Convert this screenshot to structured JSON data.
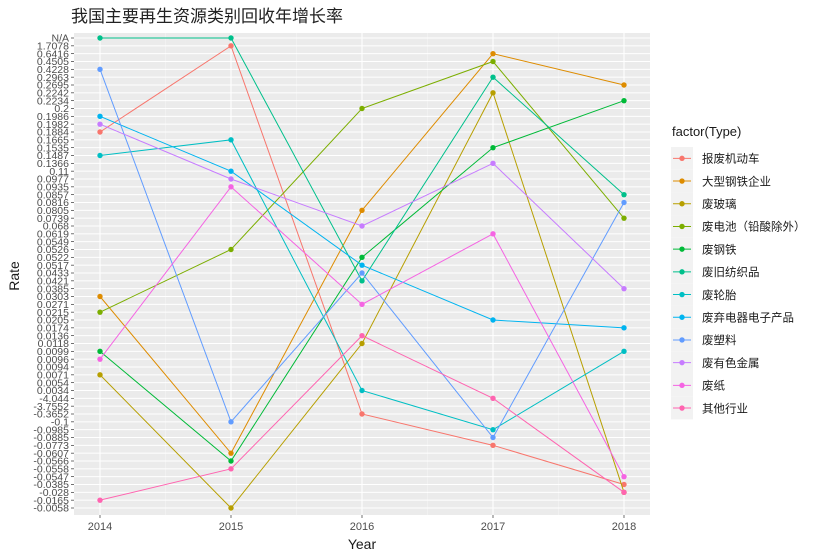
{
  "chart_data": {
    "type": "line",
    "title": "我国主要再生资源类别回收年增长率",
    "xlabel": "Year",
    "ylabel": "Rate",
    "x": [
      "2014",
      "2015",
      "2016",
      "2017",
      "2018"
    ],
    "y_axis_scale": "categorical (tick labels are discrete values; first tick at bottom)",
    "y_ticks": [
      "-0.0058",
      "-0.0165",
      "-0.028",
      "-0.0385",
      "-0.0547",
      "-0.0558",
      "-0.0566",
      "-0.0607",
      "-0.0773",
      "-0.0885",
      "-0.0985",
      "-0.1",
      "-0.3652",
      "-3.7552",
      "-4.044",
      "0.0034",
      "0.0054",
      "0.0071",
      "0.0094",
      "0.0096",
      "0.0099",
      "0.0118",
      "0.0136",
      "0.0174",
      "0.0205",
      "0.0215",
      "0.0271",
      "0.0303",
      "0.0385",
      "0.0421",
      "0.0433",
      "0.0517",
      "0.0522",
      "0.0526",
      "0.0549",
      "0.0619",
      "0.068",
      "0.0739",
      "0.0805",
      "0.0816",
      "0.0857",
      "0.0935",
      "0.0977",
      "0.11",
      "0.1366",
      "0.1487",
      "0.1535",
      "0.1665",
      "0.1884",
      "0.1982",
      "0.1986",
      "0.2",
      "0.2234",
      "0.2242",
      "0.2695",
      "0.2963",
      "0.4228",
      "0.4505",
      "0.6416",
      "1.7078",
      "N/A"
    ],
    "legend_title": "factor(Type)",
    "legend_position": "right",
    "grid": true,
    "series": [
      {
        "name": "报废机动车",
        "color": "#F8766D",
        "values": [
          "0.1884",
          "1.7078",
          "-0.3652",
          "-0.0773",
          "-0.0385"
        ]
      },
      {
        "name": "大型钢铁企业",
        "color": "#DE8C00",
        "values": [
          "0.0303",
          "-0.0607",
          "0.0805",
          "0.6416",
          "0.2695"
        ]
      },
      {
        "name": "废玻璃",
        "color": "#B79F00",
        "values": [
          "0.0071",
          "-0.0058",
          "0.0118",
          "0.2242",
          "-0.028"
        ]
      },
      {
        "name": "废电池（铅酸除外）",
        "color": "#7CAE00",
        "values": [
          "0.0215",
          "0.0526",
          "0.2",
          "0.4505",
          "0.0739"
        ]
      },
      {
        "name": "废钢铁",
        "color": "#00BA38",
        "values": [
          "0.0099",
          "-0.0566",
          "0.0522",
          "0.1535",
          "0.2234"
        ]
      },
      {
        "name": "废旧纺织品",
        "color": "#00C08B",
        "values": [
          "N/A",
          "N/A",
          "0.0421",
          "0.2963",
          "0.0857"
        ]
      },
      {
        "name": "废轮胎",
        "color": "#00BFC4",
        "values": [
          "0.1487",
          "0.1665",
          "0.0034",
          "-0.0985",
          "0.0099"
        ]
      },
      {
        "name": "废弃电器电子产品",
        "color": "#00B4F0",
        "values": [
          "0.1986",
          "0.11",
          "0.0517",
          "0.0205",
          "0.0174"
        ]
      },
      {
        "name": "废塑料",
        "color": "#619CFF",
        "values": [
          "0.4228",
          "-0.1",
          "0.0433",
          "-0.0885",
          "0.0816"
        ]
      },
      {
        "name": "废有色金属",
        "color": "#C77CFF",
        "values": [
          "0.1982",
          "0.0977",
          "0.068",
          "0.1366",
          "0.0385"
        ]
      },
      {
        "name": "废纸",
        "color": "#F564E3",
        "values": [
          "0.0096",
          "0.0935",
          "0.0271",
          "0.0619",
          "-0.0547"
        ]
      },
      {
        "name": "其他行业",
        "color": "#FF64B0",
        "values": [
          "-0.0165",
          "-0.0558",
          "0.0136",
          "-4.044",
          "-0.028"
        ]
      }
    ]
  }
}
